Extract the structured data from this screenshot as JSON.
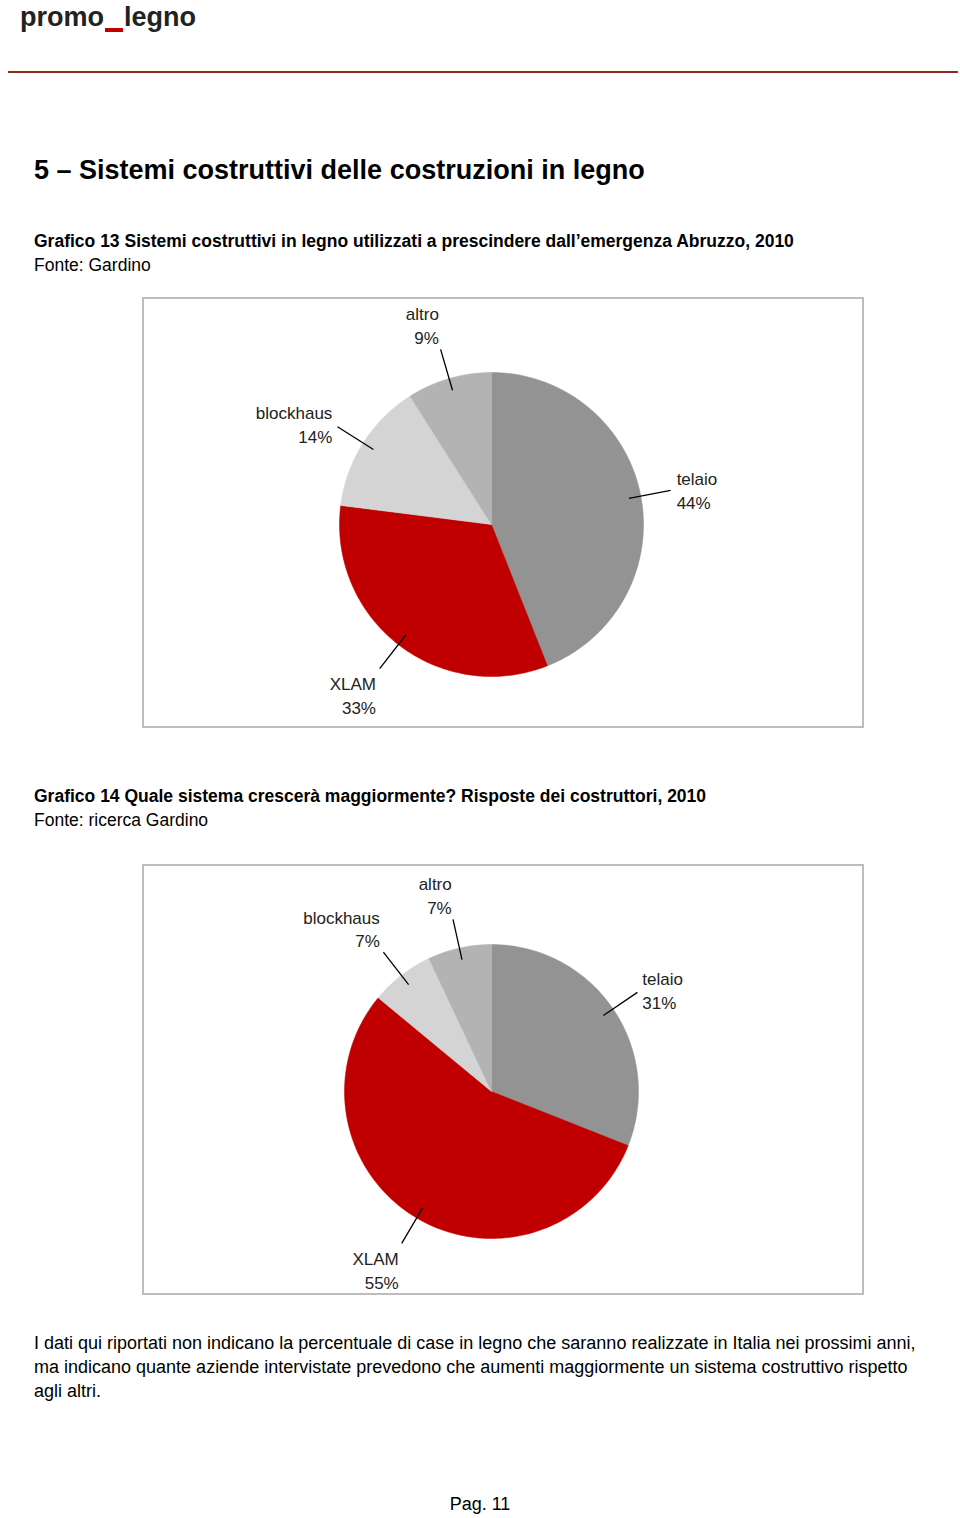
{
  "header": {
    "logo": [
      "promo",
      "legno"
    ]
  },
  "section_title": "5 – Sistemi costruttivi delle costruzioni in legno",
  "chart_data": [
    {
      "type": "pie",
      "title": "Grafico 13 Sistemi costruttivi in legno utilizzati a prescindere dall’emergenza Abruzzo, 2010",
      "subtitle": "Fonte: Gardino",
      "categories": [
        "telaio",
        "XLAM",
        "blockhaus",
        "altro"
      ],
      "values": [
        44,
        33,
        14,
        9
      ],
      "value_labels": [
        "44%",
        "33%",
        "14%",
        "9%"
      ],
      "colors": [
        "#939393",
        "#c00000",
        "#d4d4d4",
        "#b3b3b3"
      ],
      "data_labels": true
    },
    {
      "type": "pie",
      "title": "Grafico 14 Quale sistema crescerà maggiormente? Risposte dei costruttori, 2010",
      "subtitle": "Fonte: ricerca Gardino",
      "categories": [
        "telaio",
        "XLAM",
        "blockhaus",
        "altro"
      ],
      "values": [
        31,
        55,
        7,
        7
      ],
      "value_labels": [
        "31%",
        "55%",
        "7%",
        "7%"
      ],
      "colors": [
        "#939393",
        "#c00000",
        "#d4d4d4",
        "#b3b3b3"
      ],
      "data_labels": true
    }
  ],
  "note": "I dati qui riportati non indicano la percentuale di case in legno che saranno realizzate in Italia nei prossimi anni, ma indicano quante aziende intervistate prevedono che aumenti maggiormente un sistema costruttivo rispetto agli altri.",
  "footer": {
    "page": "Pag. 11"
  }
}
